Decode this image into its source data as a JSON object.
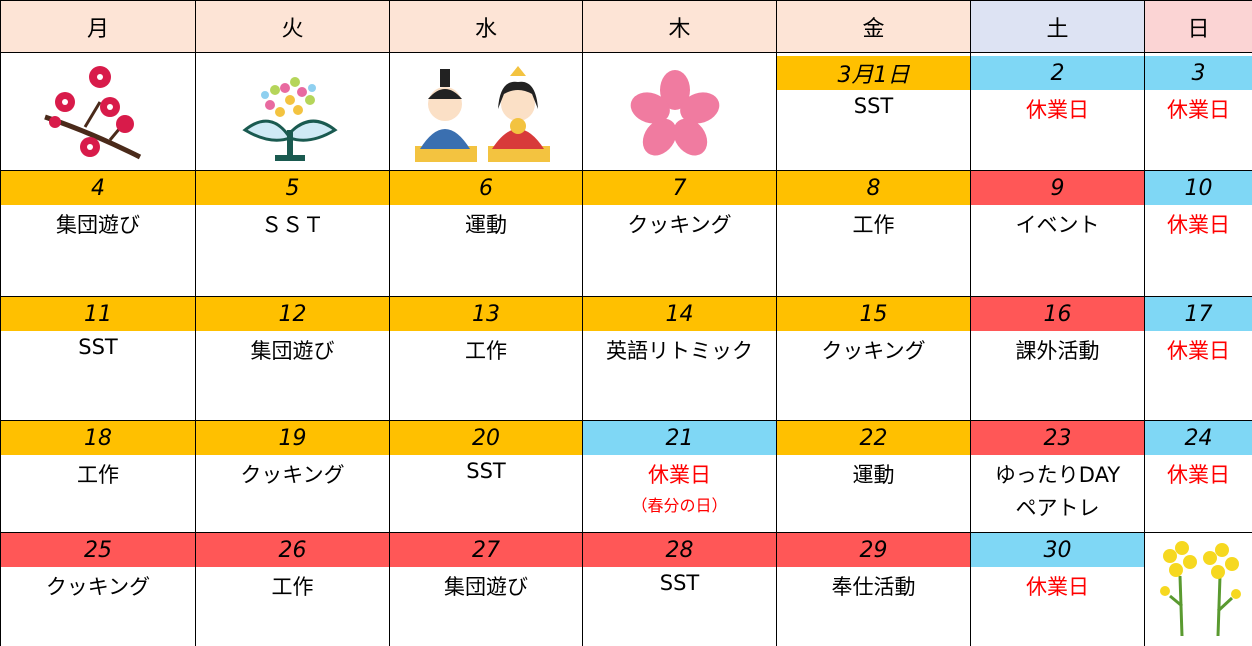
{
  "header": {
    "days": [
      "月",
      "火",
      "水",
      "木",
      "金",
      "土",
      "日"
    ],
    "colors": [
      "#fde4d6",
      "#fde4d6",
      "#fde4d6",
      "#fde4d6",
      "#fde4d6",
      "#dde3f3",
      "#fbd4d4"
    ]
  },
  "weeks": [
    [
      null,
      null,
      null,
      null,
      {
        "date": "3月1日",
        "color": "#ffc000",
        "events": [
          "SST"
        ]
      },
      {
        "date": "2",
        "color": "#7fd7f5",
        "events": [
          "休業日"
        ],
        "event_color": "#ff0000"
      },
      {
        "date": "3",
        "color": "#7fd7f5",
        "events": [
          "休業日"
        ],
        "event_color": "#ff0000"
      }
    ],
    [
      {
        "date": "4",
        "color": "#ffc000",
        "events": [
          "集団遊び"
        ]
      },
      {
        "date": "5",
        "color": "#ffc000",
        "events": [
          "ＳＳＴ"
        ]
      },
      {
        "date": "6",
        "color": "#ffc000",
        "events": [
          "運動"
        ]
      },
      {
        "date": "7",
        "color": "#ffc000",
        "events": [
          "クッキング"
        ]
      },
      {
        "date": "8",
        "color": "#ffc000",
        "events": [
          "工作"
        ]
      },
      {
        "date": "9",
        "color": "#ff5757",
        "events": [
          "イベント"
        ]
      },
      {
        "date": "10",
        "color": "#7fd7f5",
        "events": [
          "休業日"
        ],
        "event_color": "#ff0000"
      }
    ],
    [
      {
        "date": "11",
        "color": "#ffc000",
        "events": [
          "SST"
        ]
      },
      {
        "date": "12",
        "color": "#ffc000",
        "events": [
          "集団遊び"
        ]
      },
      {
        "date": "13",
        "color": "#ffc000",
        "events": [
          "工作"
        ]
      },
      {
        "date": "14",
        "color": "#ffc000",
        "events": [
          "英語リトミック"
        ]
      },
      {
        "date": "15",
        "color": "#ffc000",
        "events": [
          "クッキング"
        ]
      },
      {
        "date": "16",
        "color": "#ff5757",
        "events": [
          "課外活動"
        ]
      },
      {
        "date": "17",
        "color": "#7fd7f5",
        "events": [
          "休業日"
        ],
        "event_color": "#ff0000"
      }
    ],
    [
      {
        "date": "18",
        "color": "#ffc000",
        "events": [
          "工作"
        ]
      },
      {
        "date": "19",
        "color": "#ffc000",
        "events": [
          "クッキング"
        ]
      },
      {
        "date": "20",
        "color": "#ffc000",
        "events": [
          "SST"
        ]
      },
      {
        "date": "21",
        "color": "#7fd7f5",
        "events": [
          "休業日",
          "（春分の日）"
        ],
        "event_color": "#ff0000"
      },
      {
        "date": "22",
        "color": "#ffc000",
        "events": [
          "運動"
        ]
      },
      {
        "date": "23",
        "color": "#ff5757",
        "events": [
          "ゆったりDAY",
          "ペアトレ"
        ]
      },
      {
        "date": "24",
        "color": "#7fd7f5",
        "events": [
          "休業日"
        ],
        "event_color": "#ff0000"
      }
    ],
    [
      {
        "date": "25",
        "color": "#ff5757",
        "events": [
          "クッキング"
        ]
      },
      {
        "date": "26",
        "color": "#ff5757",
        "events": [
          "工作"
        ]
      },
      {
        "date": "27",
        "color": "#ff5757",
        "events": [
          "集団遊び"
        ]
      },
      {
        "date": "28",
        "color": "#ff5757",
        "events": [
          "SST"
        ]
      },
      {
        "date": "29",
        "color": "#ff5757",
        "events": [
          "奉仕活動"
        ]
      },
      {
        "date": "30",
        "color": "#7fd7f5",
        "events": [
          "休業日"
        ],
        "event_color": "#ff0000"
      },
      null
    ]
  ]
}
